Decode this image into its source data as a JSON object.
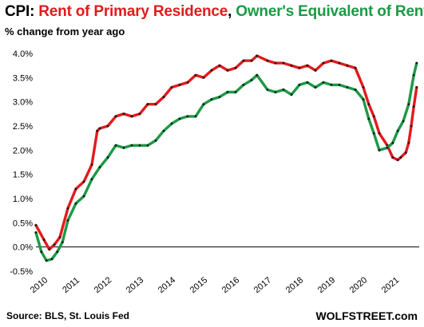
{
  "title": {
    "prefix": "CPI: ",
    "series_a": "Rent of Primary Residence",
    "separator": ", ",
    "series_b": "Owner's Equivalent of Rent"
  },
  "subtitle": "% change from year ago",
  "source": "Source: BLS, St. Louis Fed",
  "brand": "WOLFSTREET.com",
  "colors": {
    "rent": "#e31a1c",
    "oer": "#1a9a45",
    "marker": "#1a1a1a",
    "zero_line": "#000000"
  },
  "chart_data": {
    "type": "line",
    "title": "CPI: Rent of Primary Residence, Owner's Equivalent of Rent",
    "ylabel": "% change from year ago",
    "xlabel": "",
    "ylim": [
      -0.5,
      4.0
    ],
    "xlim": [
      2010.0,
      2022.0
    ],
    "y_ticks": [
      4.0,
      3.5,
      3.0,
      2.5,
      2.0,
      1.5,
      1.0,
      0.5,
      0.0,
      -0.5
    ],
    "y_tick_labels": [
      "4.0%",
      "3.5%",
      "3.0%",
      "2.5%",
      "2.0%",
      "1.5%",
      "1.0%",
      "0.5%",
      "0.0%",
      "-0.5%"
    ],
    "x_ticks": [
      2010,
      2011,
      2012,
      2013,
      2014,
      2015,
      2016,
      2017,
      2018,
      2019,
      2020,
      2021
    ],
    "x_tick_labels": [
      "2010",
      "2011",
      "2012",
      "2013",
      "2014",
      "2015",
      "2016",
      "2017",
      "2018",
      "2019",
      "2020",
      "2021"
    ],
    "grid": false,
    "zero_line": true,
    "legend": "none",
    "series": [
      {
        "name": "Rent of Primary Residence",
        "color": "#e31a1c",
        "x": [
          2010.0,
          2010.25,
          2010.42,
          2010.58,
          2010.75,
          2011.0,
          2011.25,
          2011.5,
          2011.75,
          2011.92,
          2012.0,
          2012.25,
          2012.5,
          2012.75,
          2013.0,
          2013.25,
          2013.5,
          2013.75,
          2014.0,
          2014.25,
          2014.5,
          2014.75,
          2015.0,
          2015.25,
          2015.5,
          2015.75,
          2016.0,
          2016.25,
          2016.5,
          2016.75,
          2016.92,
          2017.25,
          2017.5,
          2017.75,
          2018.0,
          2018.25,
          2018.5,
          2018.75,
          2019.0,
          2019.25,
          2019.5,
          2019.75,
          2020.0,
          2020.25,
          2020.42,
          2020.58,
          2020.75,
          2021.0,
          2021.17,
          2021.33,
          2021.42,
          2021.58,
          2021.67,
          2021.75,
          2021.83,
          2021.92
        ],
        "values": [
          0.45,
          0.15,
          -0.05,
          0.05,
          0.2,
          0.8,
          1.2,
          1.35,
          1.7,
          2.4,
          2.45,
          2.5,
          2.7,
          2.75,
          2.7,
          2.75,
          2.95,
          2.95,
          3.1,
          3.3,
          3.35,
          3.4,
          3.55,
          3.5,
          3.65,
          3.75,
          3.65,
          3.7,
          3.85,
          3.85,
          3.95,
          3.85,
          3.8,
          3.8,
          3.75,
          3.7,
          3.75,
          3.65,
          3.8,
          3.85,
          3.8,
          3.75,
          3.7,
          3.3,
          2.95,
          2.7,
          2.35,
          2.1,
          1.85,
          1.8,
          1.85,
          1.95,
          2.15,
          2.5,
          2.9,
          3.3
        ]
      },
      {
        "name": "Owner's Equivalent of Rent",
        "color": "#1a9a45",
        "x": [
          2010.0,
          2010.17,
          2010.33,
          2010.5,
          2010.67,
          2010.83,
          2011.0,
          2011.25,
          2011.5,
          2011.75,
          2012.0,
          2012.25,
          2012.5,
          2012.75,
          2013.0,
          2013.25,
          2013.5,
          2013.75,
          2014.0,
          2014.25,
          2014.5,
          2014.75,
          2015.0,
          2015.25,
          2015.5,
          2015.75,
          2016.0,
          2016.25,
          2016.5,
          2016.75,
          2016.92,
          2017.25,
          2017.5,
          2017.75,
          2018.0,
          2018.25,
          2018.5,
          2018.75,
          2019.0,
          2019.25,
          2019.5,
          2019.75,
          2020.0,
          2020.25,
          2020.42,
          2020.58,
          2020.75,
          2021.0,
          2021.17,
          2021.33,
          2021.5,
          2021.67,
          2021.83,
          2021.92
        ],
        "values": [
          0.3,
          -0.1,
          -0.28,
          -0.25,
          -0.1,
          0.1,
          0.55,
          0.9,
          1.05,
          1.4,
          1.65,
          1.85,
          2.1,
          2.05,
          2.1,
          2.1,
          2.1,
          2.2,
          2.4,
          2.55,
          2.65,
          2.7,
          2.7,
          2.95,
          3.05,
          3.1,
          3.2,
          3.2,
          3.35,
          3.45,
          3.55,
          3.25,
          3.2,
          3.25,
          3.15,
          3.35,
          3.4,
          3.3,
          3.4,
          3.35,
          3.35,
          3.3,
          3.25,
          3.05,
          2.65,
          2.35,
          2.0,
          2.05,
          2.15,
          2.4,
          2.6,
          2.95,
          3.55,
          3.8
        ]
      }
    ]
  }
}
